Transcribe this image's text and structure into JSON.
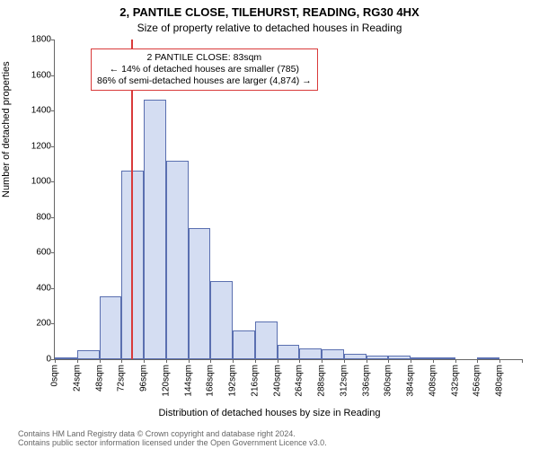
{
  "title_main": "2, PANTILE CLOSE, TILEHURST, READING, RG30 4HX",
  "title_sub": "Size of property relative to detached houses in Reading",
  "ylabel": "Number of detached properties",
  "xlabel": "Distribution of detached houses by size in Reading",
  "footer_line1": "Contains HM Land Registry data © Crown copyright and database right 2024.",
  "footer_line2": "Contains public sector information licensed under the Open Government Licence v3.0.",
  "chart": {
    "type": "histogram",
    "bar_fill": "#d4ddf2",
    "bar_stroke": "#5a6fb0",
    "background": "#ffffff",
    "vline_color": "#d93a3a",
    "legend_border": "#d93a3a",
    "axis_color": "#666666",
    "ylim": [
      0,
      1800
    ],
    "ytick_step": 200,
    "xlim": [
      0,
      504
    ],
    "xtick_step": 24,
    "xtick_unit": "sqm",
    "bin_width": 24,
    "property_sqm": 83,
    "bins": [
      {
        "x": 0,
        "count": 10
      },
      {
        "x": 24,
        "count": 50
      },
      {
        "x": 48,
        "count": 355
      },
      {
        "x": 72,
        "count": 1060
      },
      {
        "x": 96,
        "count": 1460
      },
      {
        "x": 120,
        "count": 1120
      },
      {
        "x": 144,
        "count": 740
      },
      {
        "x": 168,
        "count": 440
      },
      {
        "x": 192,
        "count": 160
      },
      {
        "x": 216,
        "count": 210
      },
      {
        "x": 240,
        "count": 80
      },
      {
        "x": 264,
        "count": 60
      },
      {
        "x": 288,
        "count": 55
      },
      {
        "x": 312,
        "count": 30
      },
      {
        "x": 336,
        "count": 20
      },
      {
        "x": 360,
        "count": 20
      },
      {
        "x": 384,
        "count": 5
      },
      {
        "x": 408,
        "count": 10
      },
      {
        "x": 432,
        "count": 0
      },
      {
        "x": 456,
        "count": 10
      },
      {
        "x": 480,
        "count": 0
      }
    ],
    "legend": {
      "line1": "2 PANTILE CLOSE: 83sqm",
      "line2": "← 14% of detached houses are smaller (785)",
      "line3": "86% of semi-detached houses are larger (4,874) →"
    },
    "title_fontsize": 13,
    "subtitle_fontsize": 12,
    "label_fontsize": 11,
    "tick_fontsize": 10,
    "legend_fontsize": 10.5
  }
}
